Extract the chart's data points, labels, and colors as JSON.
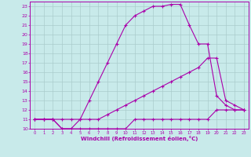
{
  "xlabel": "Windchill (Refroidissement éolien,°C)",
  "bg_color": "#c8eaea",
  "line_color": "#aa00aa",
  "grid_color": "#aacccc",
  "xlim": [
    -0.5,
    23.5
  ],
  "ylim": [
    10,
    23.5
  ],
  "xticks": [
    0,
    1,
    2,
    3,
    4,
    5,
    6,
    7,
    8,
    9,
    10,
    11,
    12,
    13,
    14,
    15,
    16,
    17,
    18,
    19,
    20,
    21,
    22,
    23
  ],
  "yticks": [
    10,
    11,
    12,
    13,
    14,
    15,
    16,
    17,
    18,
    19,
    20,
    21,
    22,
    23
  ],
  "series1_x": [
    0,
    1,
    2,
    3,
    4,
    5,
    6,
    7,
    8,
    9,
    10,
    11,
    12,
    13,
    14,
    15,
    16,
    17,
    18,
    19,
    20,
    21,
    22,
    23
  ],
  "series1_y": [
    11,
    11,
    11,
    10,
    10,
    10,
    10,
    10,
    10,
    10,
    10,
    11,
    11,
    11,
    11,
    11,
    11,
    11,
    11,
    11,
    12,
    12,
    12,
    12
  ],
  "series2_x": [
    0,
    1,
    2,
    3,
    4,
    5,
    6,
    7,
    8,
    9,
    10,
    11,
    12,
    13,
    14,
    15,
    16,
    17,
    18,
    19,
    20,
    21,
    22,
    23
  ],
  "series2_y": [
    11,
    11,
    11,
    11,
    11,
    11,
    11,
    11,
    11.5,
    12,
    12.5,
    13,
    13.5,
    14,
    14.5,
    15,
    15.5,
    16,
    16.5,
    17.5,
    17.5,
    13,
    12.5,
    12
  ],
  "series3_x": [
    0,
    1,
    2,
    3,
    4,
    5,
    6,
    7,
    8,
    9,
    10,
    11,
    12,
    13,
    14,
    15,
    16,
    17,
    18,
    19,
    20,
    21,
    22,
    23
  ],
  "series3_y": [
    11,
    11,
    11,
    10,
    10,
    11,
    13,
    15,
    17,
    19,
    21,
    22,
    22.5,
    23,
    23,
    23.2,
    23.2,
    21,
    19,
    19,
    13.5,
    12.5,
    12,
    12
  ]
}
